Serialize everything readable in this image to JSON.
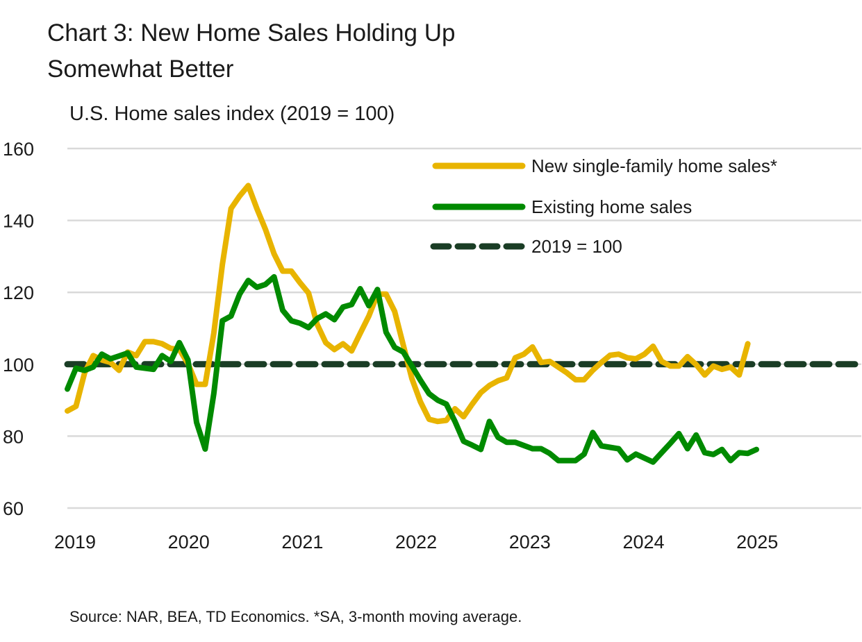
{
  "title_line1": "Chart 3: New Home Sales Holding Up",
  "title_line2": "Somewhat Better",
  "source": "Source: NAR, BEA, TD Economics. *SA, 3-month moving average.",
  "chart_data": {
    "type": "line",
    "title": "Chart 3: New Home Sales Holding Up Somewhat Better",
    "ylabel": "U.S. Home sales index (2019 = 100)",
    "xlabel": "",
    "ylim": [
      60,
      160
    ],
    "yticks": [
      "60",
      "80",
      "100",
      "120",
      "140",
      "160"
    ],
    "xticks": [
      "2019",
      "2020",
      "2021",
      "2022",
      "2023",
      "2024",
      "2025"
    ],
    "x_frequency": "monthly, starting Jan 2019",
    "grid": "horizontal",
    "legend_position": "top-right",
    "series": [
      {
        "name": "New single-family home sales*",
        "color": "#E8B400",
        "values": [
          87.0,
          88.3,
          97.6,
          102.4,
          101.2,
          100.5,
          98.3,
          103.4,
          102.4,
          106.3,
          106.3,
          105.7,
          104.4,
          104.1,
          100.2,
          94.4,
          94.4,
          108.6,
          127.8,
          143.3,
          146.8,
          149.7,
          143.3,
          137.5,
          130.7,
          125.9,
          125.9,
          122.7,
          119.8,
          111.1,
          106.0,
          104.1,
          105.7,
          103.7,
          108.6,
          113.4,
          119.5,
          119.5,
          114.7,
          105.3,
          96.0,
          89.5,
          84.7,
          84.1,
          84.4,
          87.6,
          85.4,
          88.9,
          92.1,
          94.1,
          95.4,
          96.2,
          101.8,
          102.8,
          104.8,
          100.5,
          100.8,
          99.2,
          97.6,
          95.7,
          95.7,
          98.3,
          100.5,
          102.5,
          102.8,
          101.8,
          101.5,
          102.8,
          105.0,
          100.8,
          99.5,
          99.5,
          102.1,
          99.9,
          97.0,
          99.5,
          98.6,
          99.2,
          97.0,
          105.7
        ]
      },
      {
        "name": "Existing home sales",
        "color": "#008A00",
        "values": [
          93.1,
          98.9,
          98.3,
          99.2,
          102.8,
          101.5,
          102.3,
          103.1,
          99.2,
          98.9,
          98.6,
          102.4,
          100.8,
          106.0,
          101.2,
          83.8,
          76.4,
          91.8,
          112.1,
          113.4,
          119.5,
          123.3,
          121.4,
          122.2,
          124.3,
          115.0,
          112.1,
          111.4,
          110.2,
          112.7,
          114.0,
          112.4,
          115.9,
          116.6,
          121.0,
          116.3,
          120.8,
          108.9,
          104.7,
          103.4,
          99.5,
          95.5,
          91.8,
          90.0,
          88.9,
          84.1,
          78.6,
          77.5,
          76.3,
          84.1,
          79.7,
          78.3,
          78.3,
          77.4,
          76.5,
          76.5,
          75.2,
          73.2,
          73.2,
          73.2,
          75.0,
          81.0,
          77.3,
          76.9,
          76.5,
          73.4,
          75.0,
          73.9,
          72.8,
          75.4,
          78.0,
          80.7,
          76.5,
          80.3,
          75.4,
          74.9,
          76.3,
          73.2,
          75.4,
          75.2,
          76.3
        ]
      },
      {
        "name": "2019 = 100",
        "color": "#1A3D25",
        "style": "dashed",
        "constant": 100
      }
    ]
  }
}
